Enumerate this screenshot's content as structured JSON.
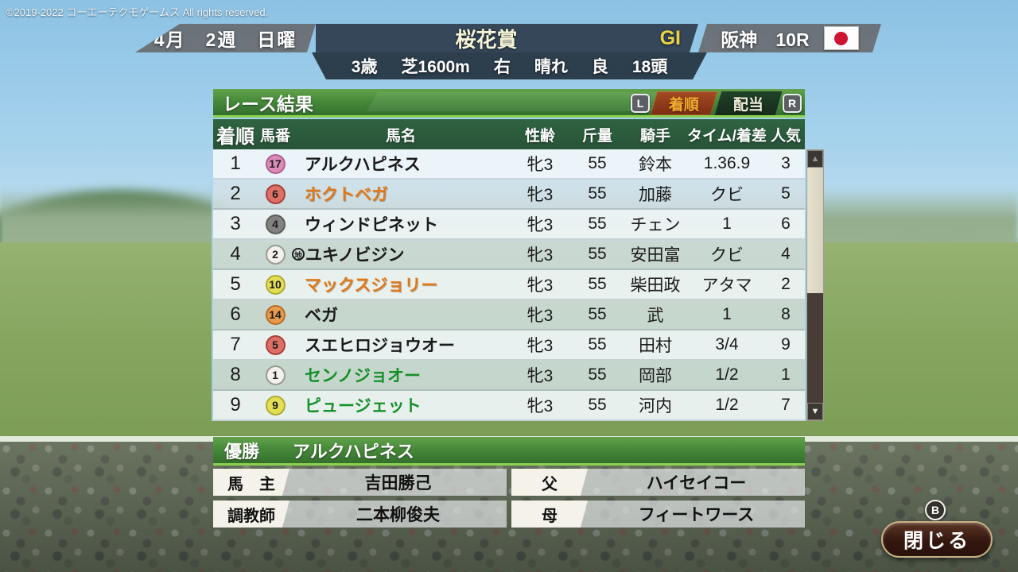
{
  "copyright": "©2019-2022 コーエーテクモゲームス All rights reserved.",
  "header": {
    "date": "4月　2週　日曜",
    "race_name": "桜花賞",
    "grade": "GI",
    "venue": "阪神　10R",
    "flag": "japan-flag",
    "conditions": [
      "3歳",
      "芝1600m",
      "右",
      "晴れ",
      "良",
      "18頭"
    ]
  },
  "results_panel": {
    "title": "レース結果",
    "left_bumper": "L",
    "right_bumper": "R",
    "tabs": [
      {
        "label": "着順",
        "active": true
      },
      {
        "label": "配当",
        "active": false
      }
    ],
    "columns": [
      "着順",
      "馬番",
      "馬名",
      "性齢",
      "斤量",
      "騎手",
      "タイム/着差",
      "人気"
    ],
    "badge_colors": {
      "white": {
        "bg": "#f2f1ec",
        "ring": "#9a9a94"
      },
      "black": {
        "bg": "#828282",
        "ring": "#5c5c5c"
      },
      "red": {
        "bg": "#dd6f66",
        "ring": "#a8423c"
      },
      "yellow": {
        "bg": "#e3df55",
        "ring": "#b0ac30"
      },
      "orange": {
        "bg": "#e89a4e",
        "ring": "#b86f28"
      },
      "pink": {
        "bg": "#d98cb8",
        "ring": "#b36090"
      }
    },
    "name_colors": {
      "black": "#1a1a1a",
      "orange": "#e07818",
      "green": "#169028"
    },
    "rows": [
      {
        "rank": "1",
        "num": "17",
        "badge": "pink",
        "mark": "",
        "name": "アルクハピネス",
        "name_color": "black",
        "sex_age": "牝3",
        "weight": "55",
        "jockey": "鈴本",
        "time": "1.36.9",
        "pop": "3"
      },
      {
        "rank": "2",
        "num": "6",
        "badge": "red",
        "mark": "",
        "name": "ホクトベガ",
        "name_color": "orange",
        "sex_age": "牝3",
        "weight": "55",
        "jockey": "加藤",
        "time": "クビ",
        "pop": "5"
      },
      {
        "rank": "3",
        "num": "4",
        "badge": "black",
        "mark": "",
        "name": "ウィンドピネット",
        "name_color": "black",
        "sex_age": "牝3",
        "weight": "55",
        "jockey": "チェン",
        "time": "1",
        "pop": "6"
      },
      {
        "rank": "4",
        "num": "2",
        "badge": "white",
        "mark": "地",
        "name": "ユキノビジン",
        "name_color": "black",
        "sex_age": "牝3",
        "weight": "55",
        "jockey": "安田富",
        "time": "クビ",
        "pop": "4"
      },
      {
        "rank": "5",
        "num": "10",
        "badge": "yellow",
        "mark": "",
        "name": "マックスジョリー",
        "name_color": "orange",
        "sex_age": "牝3",
        "weight": "55",
        "jockey": "柴田政",
        "time": "アタマ",
        "pop": "2"
      },
      {
        "rank": "6",
        "num": "14",
        "badge": "orange",
        "mark": "",
        "name": "ベガ",
        "name_color": "black",
        "sex_age": "牝3",
        "weight": "55",
        "jockey": "武",
        "time": "1",
        "pop": "8"
      },
      {
        "rank": "7",
        "num": "5",
        "badge": "red",
        "mark": "",
        "name": "スエヒロジョウオー",
        "name_color": "black",
        "sex_age": "牝3",
        "weight": "55",
        "jockey": "田村",
        "time": "3/4",
        "pop": "9"
      },
      {
        "rank": "8",
        "num": "1",
        "badge": "white",
        "mark": "",
        "name": "センノジョオー",
        "name_color": "green",
        "sex_age": "牝3",
        "weight": "55",
        "jockey": "岡部",
        "time": "1/2",
        "pop": "1"
      },
      {
        "rank": "9",
        "num": "9",
        "badge": "yellow",
        "mark": "",
        "name": "ピュージェット",
        "name_color": "green",
        "sex_age": "牝3",
        "weight": "55",
        "jockey": "河内",
        "time": "1/2",
        "pop": "7"
      }
    ],
    "scrollbar": {
      "up": "▲",
      "down": "▼"
    }
  },
  "winner_panel": {
    "label": "優勝",
    "name": "アルクハピネス"
  },
  "details": [
    {
      "label": "馬　主",
      "value": "吉田勝己"
    },
    {
      "label": "父",
      "value": "ハイセイコー"
    },
    {
      "label": "調教師",
      "value": "二本柳俊夫"
    },
    {
      "label": "母",
      "value": "フィートワース"
    }
  ],
  "close_button": {
    "label": "閉じる",
    "gamepad_key": "B"
  }
}
